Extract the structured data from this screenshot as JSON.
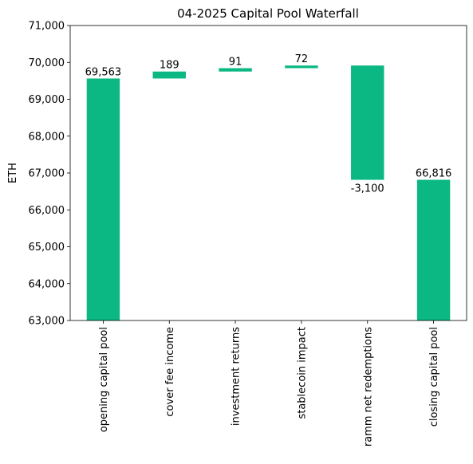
{
  "chart_data": {
    "type": "bar",
    "subtype": "waterfall",
    "title": "04-2025 Capital Pool Waterfall",
    "xlabel": "",
    "ylabel": "ETH",
    "ylim": [
      63000,
      71000
    ],
    "yticks": [
      63000,
      64000,
      65000,
      66000,
      67000,
      68000,
      69000,
      70000,
      71000
    ],
    "ytick_labels": [
      "63,000",
      "64,000",
      "65,000",
      "66,000",
      "67,000",
      "68,000",
      "69,000",
      "70,000",
      "71,000"
    ],
    "grid": false,
    "legend": "none",
    "bar_color": "#0bb883",
    "categories": [
      "opening capital pool",
      "cover fee income",
      "investment returns",
      "stablecoin impact",
      "ramm net redemptions",
      "closing capital pool"
    ],
    "steps": [
      {
        "category": "opening capital pool",
        "kind": "total",
        "value": 69563,
        "label": "69,563"
      },
      {
        "category": "cover fee income",
        "kind": "delta",
        "value": 189,
        "label": "189"
      },
      {
        "category": "investment returns",
        "kind": "delta",
        "value": 91,
        "label": "91"
      },
      {
        "category": "stablecoin impact",
        "kind": "delta",
        "value": 72,
        "label": "72"
      },
      {
        "category": "ramm net redemptions",
        "kind": "delta",
        "value": -3100,
        "label": "-3,100"
      },
      {
        "category": "closing capital pool",
        "kind": "total",
        "value": 66816,
        "label": "66,816"
      }
    ]
  }
}
